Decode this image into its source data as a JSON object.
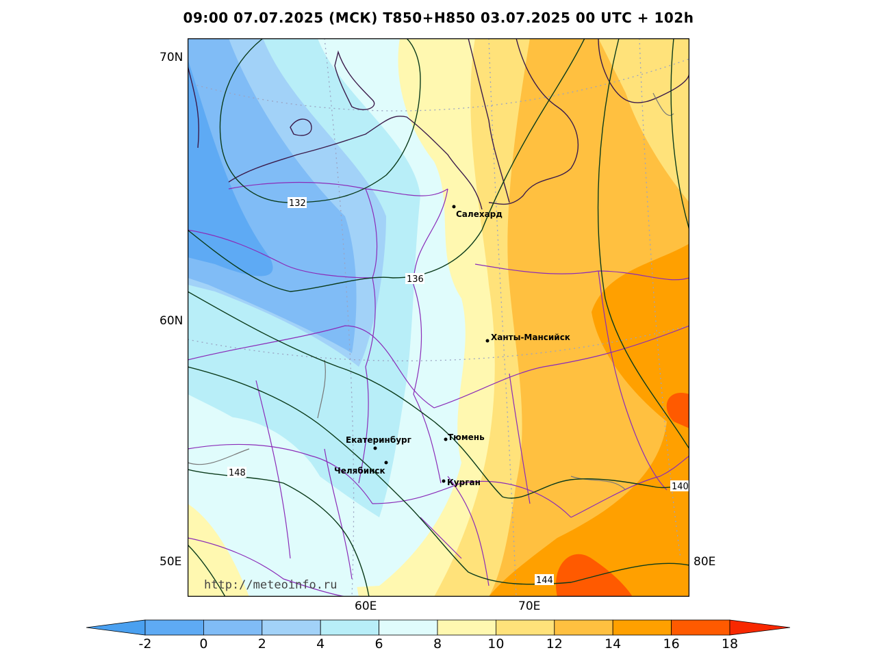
{
  "title": "09:00 07.07.2025 (МСК) T850+H850 03.07.2025 00 UTC + 102h",
  "lat_labels": [
    "70N",
    "60N",
    "50E"
  ],
  "lon_labels": [
    "60E",
    "70E",
    "80E"
  ],
  "cities": [
    {
      "name": "Салехард"
    },
    {
      "name": "Ханты-Мансийск"
    },
    {
      "name": "Екатеринбург"
    },
    {
      "name": "Тюмень"
    },
    {
      "name": "Челябинск"
    },
    {
      "name": "Курган"
    }
  ],
  "isohypse_labels": [
    "132",
    "136",
    "148",
    "140",
    "144"
  ],
  "watermark": "http://meteoinfo.ru",
  "colorbar": {
    "ticks": [
      "-2",
      "0",
      "2",
      "4",
      "6",
      "8",
      "10",
      "12",
      "14",
      "16",
      "18"
    ],
    "colors": [
      "#4aa0f0",
      "#5eaaf4",
      "#80bcf6",
      "#a2d2f8",
      "#b8eef8",
      "#e0fcfc",
      "#fff8b0",
      "#ffe27a",
      "#ffc040",
      "#ffa000",
      "#ff5a00",
      "#f82800"
    ]
  }
}
